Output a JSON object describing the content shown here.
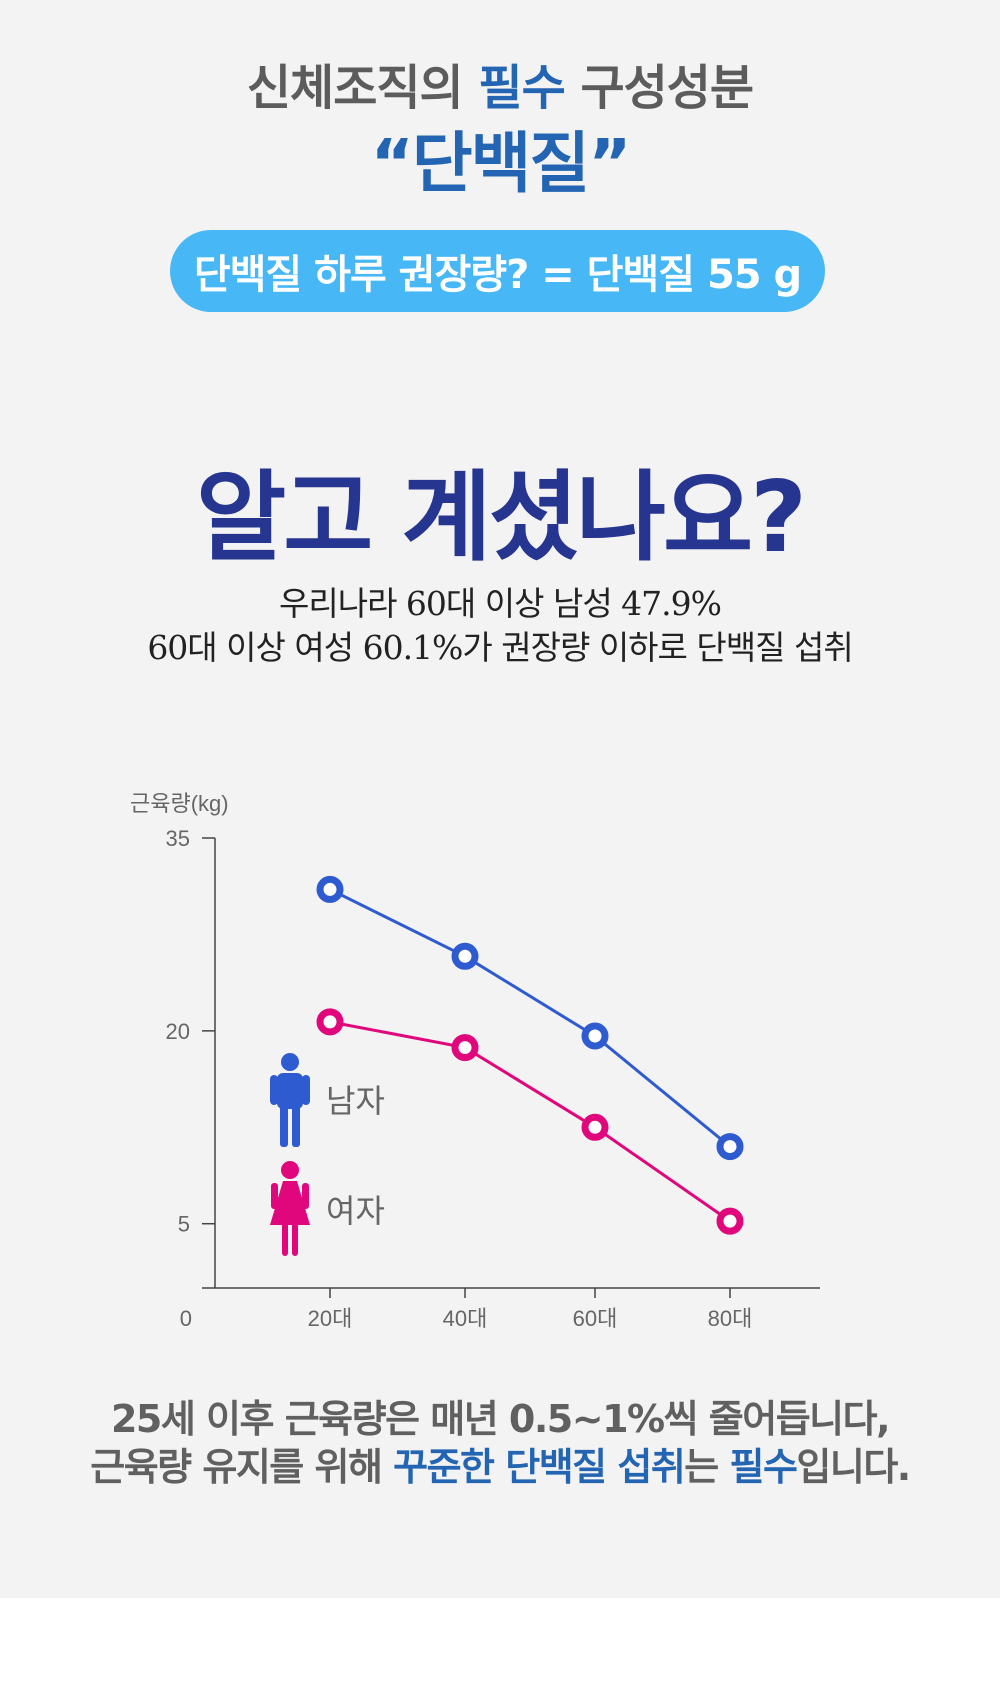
{
  "header": {
    "line1_pre": "신체조직의 ",
    "line1_highlight": "필수",
    "line1_post": " 구성성분",
    "line2": "“단백질”"
  },
  "pill": {
    "text": "단백질 하루 권장량? = 단백질 55 g"
  },
  "question": "알고 계셨나요?",
  "stat": {
    "line1": "우리나라 60대 이상 남성 47.9%",
    "line2": "60대 이상 여성 60.1%가 권장량 이하로 단백질 섭취"
  },
  "colors": {
    "male": "#2f5bd1",
    "female": "#e0077d",
    "accent": "#2465b3",
    "pill": "#48b7f5",
    "question": "#26358f"
  },
  "chart_data": {
    "type": "line",
    "ylabel": "근육량(kg)",
    "xlabel": "",
    "ylim": [
      0,
      35
    ],
    "yticks": [
      0,
      5,
      20,
      35
    ],
    "categories": [
      "20대",
      "40대",
      "60대",
      "80대"
    ],
    "series": [
      {
        "name": "남자",
        "color": "#2f5bd1",
        "icon": "male-person-icon",
        "values": [
          31,
          25.8,
          19.6,
          11
        ]
      },
      {
        "name": "여자",
        "color": "#e0077d",
        "icon": "female-person-icon",
        "values": [
          20.7,
          18.7,
          12.5,
          5.2
        ]
      }
    ],
    "legend_placement": "left-inside",
    "grid": false
  },
  "conclusion": {
    "line1": "25세 이후 근육량은 매년 0.5~1%씩 줄어듭니다,",
    "line2_pre": "근육량 유지를 위해 ",
    "line2_highlight1": "꾸준한 단백질 섭취",
    "line2_mid": "는 ",
    "line2_highlight2": "필수",
    "line2_post": "입니다."
  }
}
